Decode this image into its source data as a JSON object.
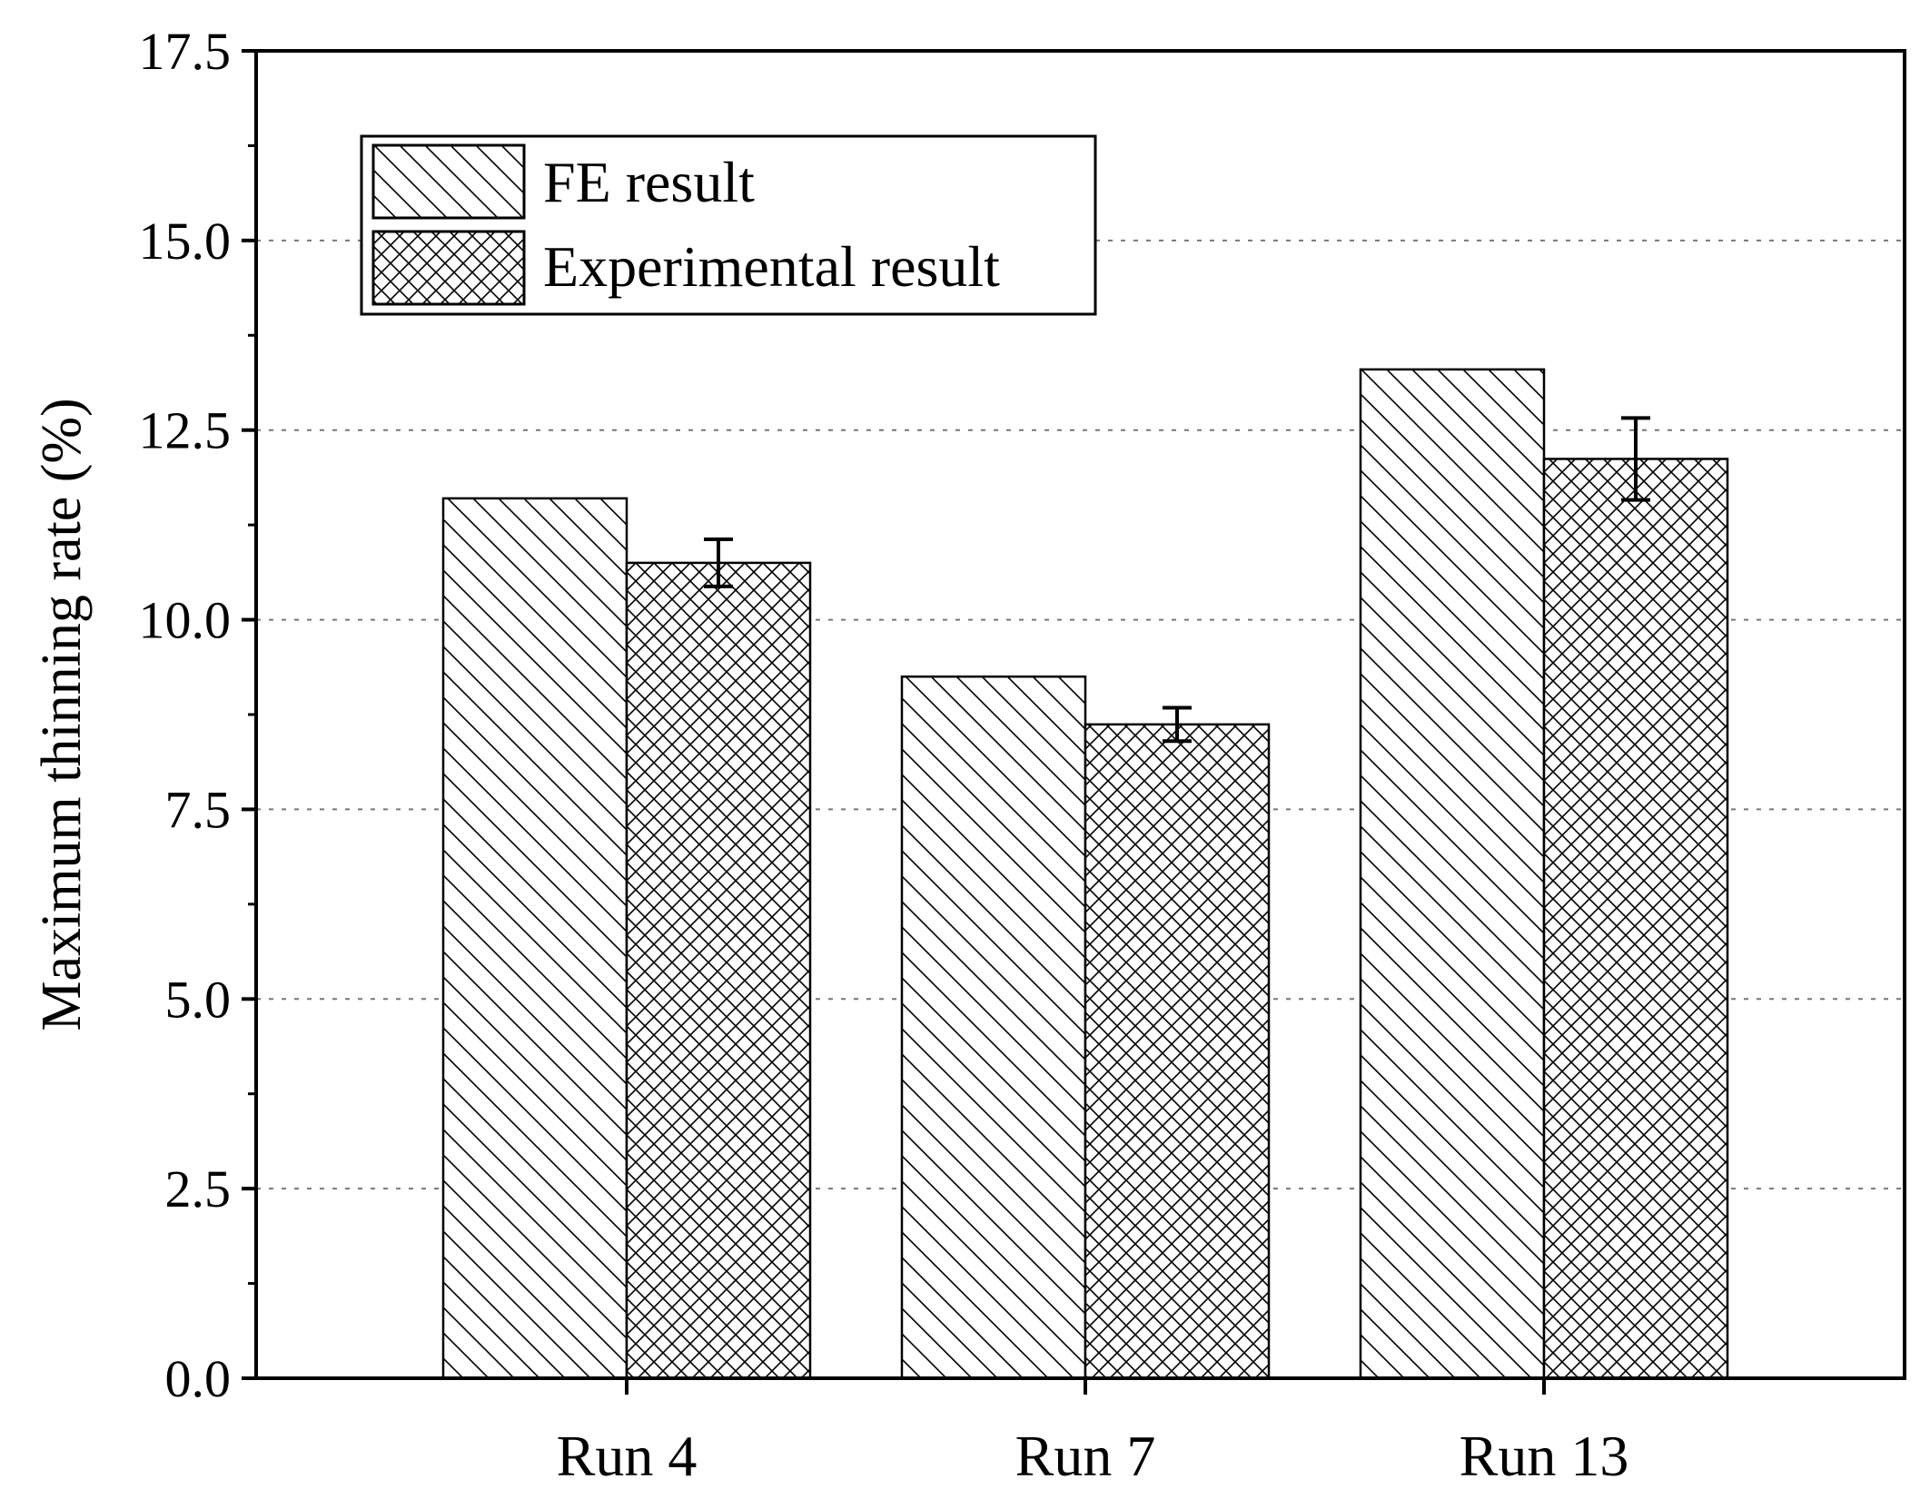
{
  "chart_data": {
    "type": "bar",
    "ylabel": "Maximum thinning rate (%)",
    "xlabel": "",
    "ylim": [
      0,
      17.5
    ],
    "yticks": [
      "0.0",
      "2.5",
      "5.0",
      "7.5",
      "10.0",
      "12.5",
      "15.0",
      "17.5"
    ],
    "grid": "horizontal-dotted",
    "legend_position": "top-left",
    "categories": [
      "Run 4",
      "Run 7",
      "Run 13"
    ],
    "series": [
      {
        "name": "FE result",
        "pattern": "diagonal-hatch",
        "values": [
          11.6,
          9.25,
          13.3
        ],
        "errors": null
      },
      {
        "name": "Experimental result",
        "pattern": "cross-hatch",
        "values": [
          10.75,
          8.62,
          12.12
        ],
        "errors": [
          0.31,
          0.22,
          0.54
        ]
      }
    ]
  },
  "colors": {
    "axis": "#000000",
    "grid": "#777777",
    "bar_fill": "#ffffff",
    "hatch": "#000000"
  }
}
